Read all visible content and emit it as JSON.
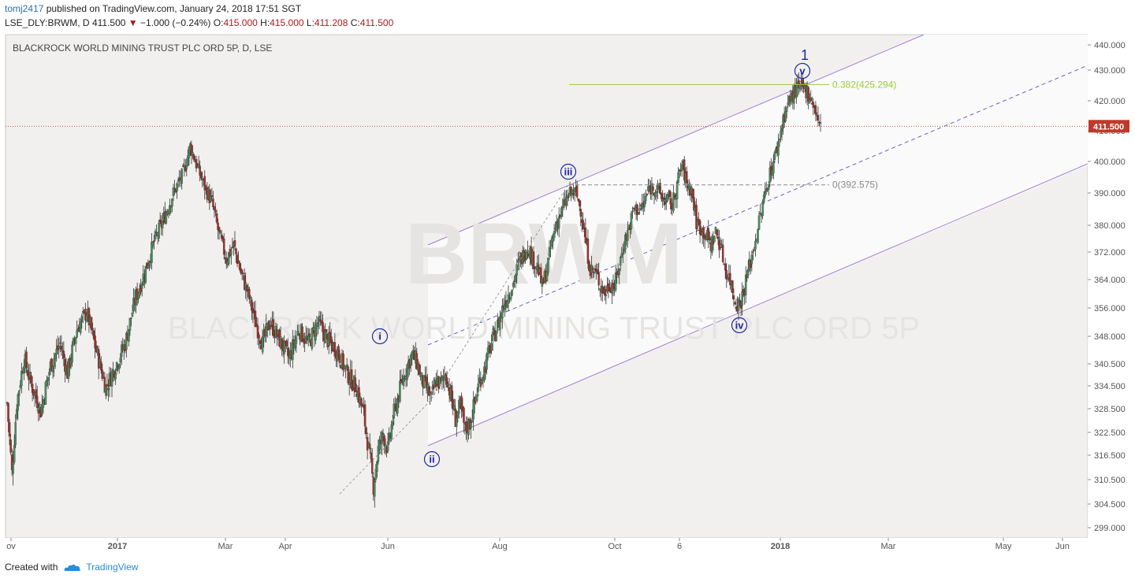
{
  "header": {
    "user": "tomj2417",
    "published": "published on TradingView.com, January 24, 2018 17:51 SGT",
    "symbol": "LSE_DLY:BRWM, D",
    "last": "411.500",
    "change": "−1.000 (−0.24%)",
    "o_label": "O:",
    "o": "415.000",
    "h_label": "H:",
    "h": "415.000",
    "l_label": "L:",
    "l": "411.208",
    "c_label": "C:",
    "c": "411.500"
  },
  "footer": {
    "created": "Created with",
    "brand": "TradingView"
  },
  "colors": {
    "up": "#4a8f5e",
    "down": "#a3322a",
    "channel": "#a17fd0",
    "fib_green": "#9acd32",
    "fib_gray": "#8a8a8a",
    "price_tag": "#c0392b",
    "wave": "#1a27a8"
  },
  "chart_data": {
    "type": "candlestick",
    "title": "BLACKROCK WORLD MINING TRUST PLC ORD 5P, D, LSE",
    "y_ticks": [
      "440.000",
      "430.000",
      "420.000",
      "410.000",
      "400.000",
      "390.000",
      "380.000",
      "372.000",
      "364.000",
      "356.000",
      "348.000",
      "340.500",
      "334.500",
      "328.500",
      "322.500",
      "316.500",
      "310.500",
      "304.500",
      "299.000"
    ],
    "x_ticks": [
      "ov",
      "2017",
      "Mar",
      "Apr",
      "Jun",
      "Aug",
      "Oct",
      "6",
      "2018",
      "Mar",
      "May",
      "Jun"
    ],
    "bold_x_ticks": [
      "2017",
      "2018"
    ],
    "ylim": [
      296,
      444
    ],
    "last_price": "411.500",
    "horizontal_lines": [
      {
        "label": "0.382(425.294)",
        "value": 425.294,
        "color": "green"
      },
      {
        "label": "0(392.575)",
        "value": 392.575,
        "color": "gray",
        "dashed": true
      }
    ],
    "wave_labels": [
      "i",
      "ii",
      "iii",
      "iv",
      "v",
      "1"
    ],
    "watermark": "BRWM",
    "watermark_sub": "BLACKROCK WORLD MINING TRUST PLC ORD 5P",
    "price_path": [
      [
        0,
        330
      ],
      [
        4,
        312
      ],
      [
        8,
        330
      ],
      [
        14,
        342
      ],
      [
        20,
        335
      ],
      [
        28,
        328
      ],
      [
        36,
        340
      ],
      [
        44,
        346
      ],
      [
        50,
        338
      ],
      [
        58,
        350
      ],
      [
        66,
        355
      ],
      [
        74,
        344
      ],
      [
        82,
        334
      ],
      [
        90,
        340
      ],
      [
        98,
        346
      ],
      [
        106,
        358
      ],
      [
        114,
        366
      ],
      [
        122,
        375
      ],
      [
        130,
        382
      ],
      [
        138,
        390
      ],
      [
        146,
        396
      ],
      [
        152,
        405
      ],
      [
        158,
        398
      ],
      [
        164,
        392
      ],
      [
        170,
        387
      ],
      [
        176,
        377
      ],
      [
        182,
        370
      ],
      [
        188,
        374
      ],
      [
        194,
        366
      ],
      [
        200,
        360
      ],
      [
        206,
        352
      ],
      [
        212,
        346
      ],
      [
        218,
        352
      ],
      [
        226,
        347
      ],
      [
        234,
        342
      ],
      [
        242,
        350
      ],
      [
        250,
        346
      ],
      [
        258,
        352
      ],
      [
        266,
        347
      ],
      [
        274,
        344
      ],
      [
        282,
        338
      ],
      [
        290,
        334
      ],
      [
        296,
        327
      ],
      [
        300,
        318
      ],
      [
        304,
        309
      ],
      [
        308,
        318
      ],
      [
        312,
        322
      ],
      [
        316,
        318
      ],
      [
        320,
        326
      ],
      [
        324,
        331
      ],
      [
        328,
        336
      ],
      [
        332,
        340
      ],
      [
        336,
        343
      ],
      [
        340,
        341
      ],
      [
        344,
        336
      ],
      [
        348,
        334
      ],
      [
        352,
        331
      ],
      [
        356,
        336
      ],
      [
        360,
        335
      ],
      [
        364,
        338
      ],
      [
        368,
        332
      ],
      [
        372,
        326
      ],
      [
        376,
        329
      ],
      [
        380,
        323
      ],
      [
        384,
        325
      ],
      [
        388,
        330
      ],
      [
        392,
        336
      ],
      [
        396,
        339
      ],
      [
        400,
        344
      ],
      [
        404,
        348
      ],
      [
        408,
        352
      ],
      [
        412,
        357
      ],
      [
        416,
        360
      ],
      [
        420,
        363
      ],
      [
        424,
        368
      ],
      [
        428,
        371
      ],
      [
        432,
        374
      ],
      [
        436,
        370
      ],
      [
        440,
        368
      ],
      [
        444,
        362
      ],
      [
        448,
        367
      ],
      [
        452,
        375
      ],
      [
        456,
        381
      ],
      [
        460,
        384
      ],
      [
        464,
        388
      ],
      [
        468,
        390
      ],
      [
        472,
        390
      ],
      [
        476,
        385
      ],
      [
        480,
        375
      ],
      [
        484,
        367
      ],
      [
        488,
        366
      ],
      [
        492,
        363
      ],
      [
        496,
        360
      ],
      [
        500,
        363
      ],
      [
        504,
        362
      ],
      [
        508,
        368
      ],
      [
        512,
        375
      ],
      [
        516,
        379
      ],
      [
        520,
        385
      ],
      [
        524,
        385
      ],
      [
        528,
        386
      ],
      [
        532,
        391
      ],
      [
        536,
        392
      ],
      [
        540,
        391
      ],
      [
        544,
        388
      ],
      [
        548,
        388
      ],
      [
        552,
        386
      ],
      [
        556,
        393
      ],
      [
        560,
        399
      ],
      [
        564,
        393
      ],
      [
        568,
        391
      ],
      [
        572,
        381
      ],
      [
        576,
        379
      ],
      [
        580,
        377
      ],
      [
        584,
        374
      ],
      [
        588,
        378
      ],
      [
        592,
        374
      ],
      [
        596,
        367
      ],
      [
        600,
        364
      ],
      [
        604,
        358
      ],
      [
        608,
        357
      ],
      [
        612,
        362
      ],
      [
        616,
        368
      ],
      [
        620,
        374
      ],
      [
        624,
        381
      ],
      [
        628,
        388
      ],
      [
        632,
        395
      ],
      [
        636,
        400
      ],
      [
        640,
        406
      ],
      [
        644,
        414
      ],
      [
        648,
        419
      ],
      [
        652,
        422
      ],
      [
        656,
        424
      ],
      [
        660,
        424
      ],
      [
        664,
        423
      ],
      [
        668,
        420
      ],
      [
        672,
        415
      ],
      [
        674,
        411.5
      ]
    ]
  }
}
